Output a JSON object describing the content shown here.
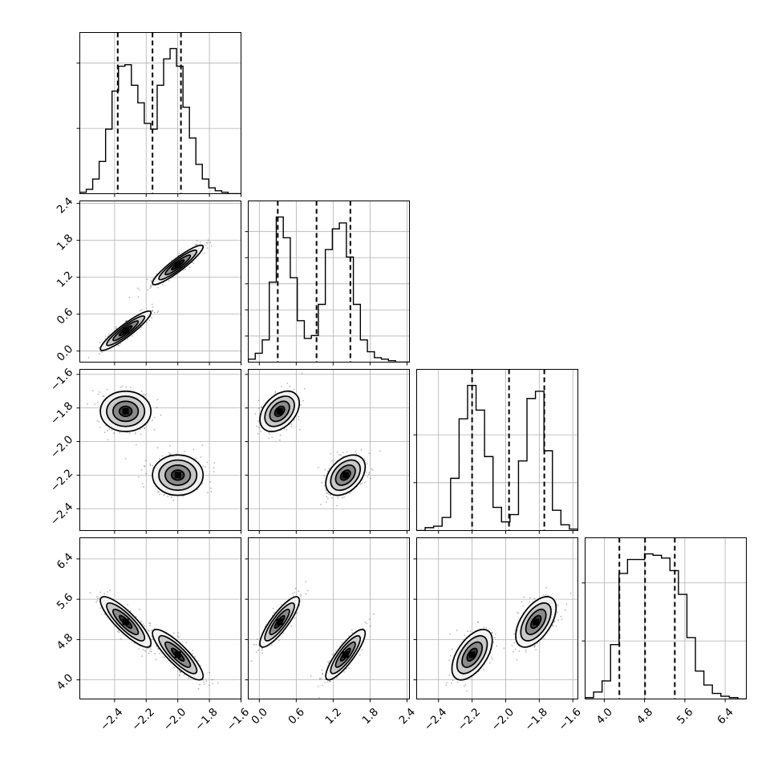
{
  "chart_data": {
    "type": "corner",
    "grid": true,
    "dimensions": [
      {
        "range": [
          -2.62,
          -1.6
        ],
        "ticks": [
          "−2.4",
          "−2.2",
          "−2.0",
          "−1.8",
          "−1.6"
        ],
        "tick_values": [
          -2.4,
          -2.2,
          -2.0,
          -1.8,
          -1.6
        ],
        "quantiles": [
          -2.38,
          -2.16,
          -1.98
        ],
        "hist_rel": [
          0.01,
          0.03,
          0.1,
          0.22,
          0.44,
          0.7,
          0.87,
          0.88,
          0.74,
          0.62,
          0.48,
          0.44,
          0.74,
          0.92,
          0.99,
          0.87,
          0.59,
          0.38,
          0.2,
          0.1,
          0.04,
          0.02,
          0.01,
          0.0,
          0.0
        ],
        "hist_yticks_rel": [
          0.45,
          0.9
        ]
      },
      {
        "range": [
          -0.18,
          2.44
        ],
        "ticks": [
          "0.0",
          "0.6",
          "1.2",
          "1.8",
          "2.4"
        ],
        "tick_values": [
          0.0,
          0.6,
          1.2,
          1.8,
          2.4
        ],
        "quantiles": [
          0.3,
          0.93,
          1.48
        ],
        "hist_rel": [
          0.02,
          0.06,
          0.15,
          0.54,
          0.98,
          0.84,
          0.57,
          0.28,
          0.16,
          0.18,
          0.39,
          0.76,
          0.9,
          0.94,
          0.71,
          0.39,
          0.15,
          0.07,
          0.03,
          0.02,
          0.01,
          0.0,
          0.0
        ],
        "hist_yticks_rel": [
          0.18,
          0.36,
          0.54,
          0.72,
          0.9
        ]
      },
      {
        "range": [
          -2.53,
          -1.57
        ],
        "ticks": [
          "−2.4",
          "−2.2",
          "−2.0",
          "−1.8",
          "−1.6"
        ],
        "tick_values": [
          -2.4,
          -2.2,
          -2.0,
          -1.8,
          -1.6
        ],
        "quantiles": [
          -2.2,
          -1.98,
          -1.77
        ],
        "hist_rel": [
          0.0,
          0.02,
          0.03,
          0.09,
          0.36,
          0.77,
          1.0,
          0.83,
          0.51,
          0.16,
          0.06,
          0.11,
          0.48,
          0.91,
          0.96,
          0.55,
          0.14,
          0.04,
          0.01
        ],
        "hist_yticks_rel": [
          0.33,
          0.66
        ]
      },
      {
        "range": [
          3.62,
          6.82
        ],
        "ticks": [
          "4.0",
          "4.8",
          "5.6",
          "6.4"
        ],
        "tick_values": [
          4.0,
          4.8,
          5.6,
          6.4
        ],
        "quantiles": [
          4.3,
          4.81,
          5.4
        ],
        "hist_rel": [
          0.01,
          0.05,
          0.13,
          0.39,
          0.9,
          1.0,
          1.0,
          1.04,
          1.03,
          1.01,
          0.92,
          0.75,
          0.44,
          0.2,
          0.1,
          0.04,
          0.02,
          0.01,
          0.0
        ],
        "hist_yticks_rel": [
          0.4,
          0.8
        ]
      }
    ],
    "modes": [
      {
        "mean": [
          -2.33,
          0.33,
          -1.82,
          5.15
        ],
        "sd": [
          0.08,
          0.16,
          0.06,
          0.25
        ],
        "weight": 0.5
      },
      {
        "mean": [
          -2.0,
          1.4,
          -2.2,
          4.5
        ],
        "sd": [
          0.08,
          0.16,
          0.06,
          0.25
        ],
        "weight": 0.5
      }
    ],
    "correlations": {
      "0-1": 0.92,
      "0-2": 0.0,
      "0-3": -0.85,
      "1-2": 0.4,
      "1-3": 0.85,
      "2-3": 0.55
    },
    "contour_levels_sigma": [
      0.5,
      1.0,
      1.5,
      2.0
    ]
  }
}
